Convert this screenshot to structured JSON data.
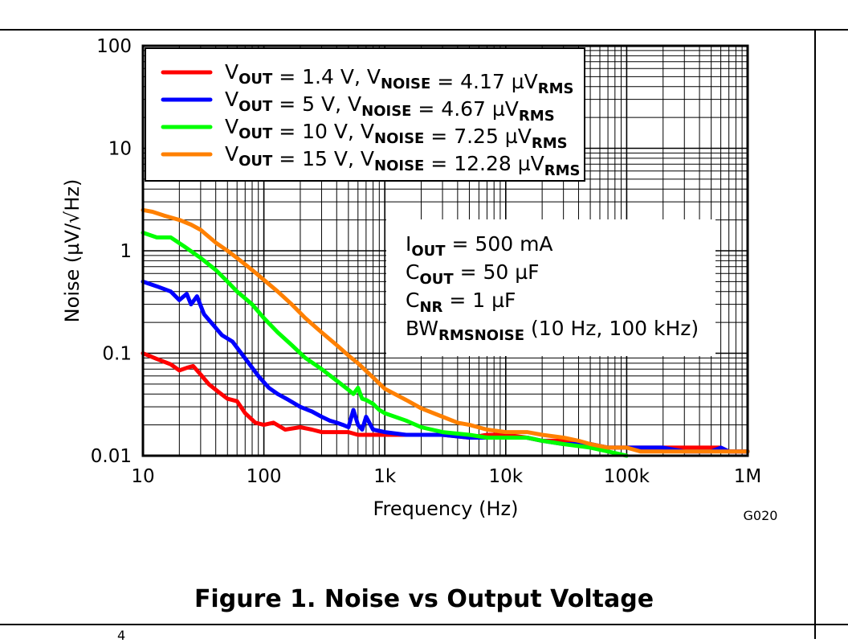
{
  "figure": {
    "caption": "Figure 1. Noise vs Output Voltage",
    "code": "G020",
    "page_number": "4"
  },
  "colors": {
    "vout_1_4": "#ff0000",
    "vout_5": "#0000ff",
    "vout_10": "#00ff00",
    "vout_15": "#ff8000"
  },
  "chart_data": {
    "type": "line",
    "title": "",
    "xlabel": "Frequency (Hz)",
    "ylabel": "Noise (µV/√Hz)",
    "x_scale": "log",
    "y_scale": "log",
    "xlim": [
      10,
      1000000
    ],
    "ylim": [
      0.01,
      100
    ],
    "grid": true,
    "legend_position": "top-left",
    "x_ticks": [
      {
        "value": 10,
        "label": "10"
      },
      {
        "value": 100,
        "label": "100"
      },
      {
        "value": 1000,
        "label": "1k"
      },
      {
        "value": 10000,
        "label": "10k"
      },
      {
        "value": 100000,
        "label": "100k"
      },
      {
        "value": 1000000,
        "label": "1M"
      }
    ],
    "y_ticks": [
      {
        "value": 0.01,
        "label": "0.01"
      },
      {
        "value": 0.1,
        "label": "0.1"
      },
      {
        "value": 1,
        "label": "1"
      },
      {
        "value": 10,
        "label": "10"
      },
      {
        "value": 100,
        "label": "100"
      }
    ],
    "conditions": [
      {
        "main": "I",
        "sub": "OUT",
        "rest": " = 500 mA"
      },
      {
        "main": "C",
        "sub": "OUT",
        "rest": " = 50 µF"
      },
      {
        "main": "C",
        "sub": "NR",
        "rest": " = 1 µF"
      },
      {
        "main": "BW",
        "sub": "RMSNOISE",
        "rest": " (10 Hz, 100 kHz)"
      }
    ],
    "series": [
      {
        "name": "VOUT = 1.4 V, VNOISE = 4.17 µVRMS",
        "legend": {
          "vout": " = 1.4 V, ",
          "noise": " = 4.17 µV"
        },
        "color": "#ff0000",
        "x": [
          10,
          13,
          17,
          20,
          23,
          26,
          30,
          35,
          42,
          50,
          60,
          70,
          85,
          100,
          120,
          150,
          200,
          250,
          300,
          400,
          500,
          600,
          700,
          800,
          1000,
          1500,
          2000,
          3000,
          5000,
          7000,
          10000,
          15000,
          20000,
          30000,
          50000,
          70000,
          100000,
          150000,
          200000,
          300000,
          400000,
          500000,
          600000,
          700000,
          800000,
          1000000
        ],
        "y": [
          0.1,
          0.088,
          0.078,
          0.068,
          0.072,
          0.075,
          0.062,
          0.05,
          0.042,
          0.036,
          0.034,
          0.026,
          0.021,
          0.02,
          0.021,
          0.018,
          0.019,
          0.018,
          0.017,
          0.017,
          0.017,
          0.016,
          0.016,
          0.016,
          0.016,
          0.016,
          0.016,
          0.016,
          0.015,
          0.016,
          0.016,
          0.015,
          0.014,
          0.014,
          0.013,
          0.012,
          0.012,
          0.012,
          0.012,
          0.012,
          0.012,
          0.012,
          0.012,
          0.011,
          0.011,
          0.011
        ]
      },
      {
        "name": "VOUT = 5 V, VNOISE = 4.67 µVRMS",
        "legend": {
          "vout": " = 5 V, ",
          "noise": " = 4.67 µV"
        },
        "color": "#0000ff",
        "x": [
          10,
          13,
          17,
          20,
          23,
          25,
          28,
          32,
          38,
          45,
          55,
          65,
          75,
          90,
          110,
          130,
          160,
          200,
          250,
          300,
          350,
          400,
          450,
          500,
          550,
          600,
          650,
          700,
          800,
          1000,
          1500,
          2000,
          3000,
          5000,
          7000,
          10000,
          15000,
          20000,
          30000,
          50000,
          70000,
          100000,
          150000,
          200000,
          300000,
          400000,
          500000,
          600000,
          700000,
          800000,
          1000000
        ],
        "y": [
          0.5,
          0.45,
          0.4,
          0.33,
          0.38,
          0.3,
          0.36,
          0.24,
          0.19,
          0.15,
          0.13,
          0.1,
          0.08,
          0.06,
          0.046,
          0.04,
          0.035,
          0.03,
          0.027,
          0.024,
          0.022,
          0.021,
          0.02,
          0.019,
          0.028,
          0.02,
          0.018,
          0.024,
          0.018,
          0.017,
          0.016,
          0.016,
          0.016,
          0.015,
          0.015,
          0.015,
          0.015,
          0.014,
          0.013,
          0.013,
          0.012,
          0.012,
          0.012,
          0.012,
          0.011,
          0.011,
          0.011,
          0.012,
          0.011,
          0.011,
          0.011
        ]
      },
      {
        "name": "VOUT = 10 V, VNOISE = 7.25 µVRMS",
        "legend": {
          "vout": " = 10 V, ",
          "noise": " = 7.25 µV"
        },
        "color": "#00ff00",
        "x": [
          10,
          13,
          17,
          22,
          30,
          40,
          50,
          60,
          80,
          100,
          130,
          170,
          220,
          300,
          400,
          500,
          550,
          600,
          650,
          700,
          800,
          900,
          1000,
          1500,
          2000,
          3000,
          5000,
          7000,
          10000,
          15000,
          20000,
          30000,
          50000,
          70000,
          100000
        ],
        "y": [
          1.5,
          1.35,
          1.35,
          1.1,
          0.85,
          0.65,
          0.5,
          0.4,
          0.3,
          0.22,
          0.16,
          0.12,
          0.09,
          0.07,
          0.054,
          0.044,
          0.04,
          0.046,
          0.036,
          0.035,
          0.032,
          0.028,
          0.026,
          0.022,
          0.019,
          0.017,
          0.016,
          0.015,
          0.015,
          0.015,
          0.014,
          0.013,
          0.012,
          0.011,
          0.01
        ]
      },
      {
        "name": "VOUT = 15 V, VNOISE = 12.28 µVRMS",
        "legend": {
          "vout": " = 15 V, ",
          "noise": " = 12.28 µV"
        },
        "color": "#ff8000",
        "x": [
          10,
          12,
          15,
          20,
          25,
          30,
          40,
          50,
          60,
          80,
          100,
          130,
          170,
          220,
          300,
          400,
          500,
          600,
          800,
          1000,
          1500,
          2000,
          3000,
          4000,
          5000,
          7000,
          10000,
          15000,
          20000,
          30000,
          40000,
          50000,
          70000,
          100000,
          130000,
          170000,
          200000,
          300000,
          400000,
          500000,
          700000,
          1000000
        ],
        "y": [
          2.5,
          2.4,
          2.2,
          2.0,
          1.8,
          1.6,
          1.2,
          1.0,
          0.85,
          0.65,
          0.52,
          0.4,
          0.3,
          0.22,
          0.16,
          0.12,
          0.095,
          0.08,
          0.058,
          0.045,
          0.035,
          0.029,
          0.024,
          0.021,
          0.02,
          0.018,
          0.017,
          0.017,
          0.016,
          0.015,
          0.014,
          0.013,
          0.012,
          0.012,
          0.011,
          0.011,
          0.011,
          0.011,
          0.011,
          0.011,
          0.011,
          0.011
        ]
      }
    ]
  }
}
